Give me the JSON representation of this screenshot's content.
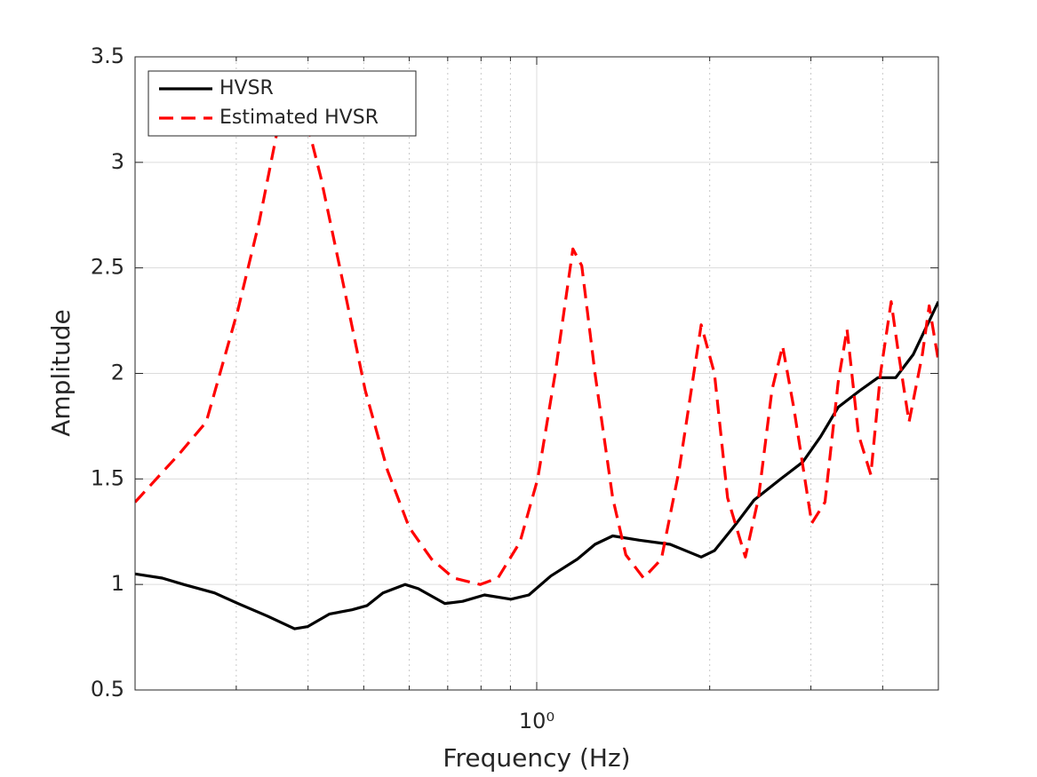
{
  "chart_data": {
    "type": "line",
    "xlabel": "Frequency (Hz)",
    "ylabel": "Amplitude",
    "xscale": "log",
    "xlim": [
      0.2,
      5
    ],
    "ylim": [
      0.5,
      3.5
    ],
    "xticks": [
      {
        "value": 1,
        "label": "10⁰"
      }
    ],
    "xminorticks": [
      0.3,
      0.4,
      0.5,
      0.6,
      0.7,
      0.8,
      0.9,
      2,
      3,
      4
    ],
    "yticks": [
      0.5,
      1,
      1.5,
      2,
      2.5,
      3,
      3.5
    ],
    "grid": true,
    "legend": "upper-left",
    "series": [
      {
        "name": "HVSR",
        "color": "#000000",
        "dash": "solid",
        "x": [
          0.2,
          0.223,
          0.243,
          0.275,
          0.302,
          0.34,
          0.379,
          0.399,
          0.436,
          0.477,
          0.507,
          0.54,
          0.59,
          0.622,
          0.692,
          0.743,
          0.811,
          0.902,
          0.969,
          1.058,
          1.177,
          1.263,
          1.356,
          1.508,
          1.707,
          1.933,
          2.038,
          2.227,
          2.389,
          2.659,
          2.904,
          3.118,
          3.347,
          3.656,
          3.925,
          4.214,
          4.523,
          5
        ],
        "values": [
          1.05,
          1.03,
          1.0,
          0.96,
          0.91,
          0.85,
          0.79,
          0.8,
          0.86,
          0.88,
          0.9,
          0.96,
          1.0,
          0.98,
          0.91,
          0.92,
          0.95,
          0.93,
          0.95,
          1.04,
          1.12,
          1.19,
          1.23,
          1.21,
          1.19,
          1.13,
          1.16,
          1.29,
          1.4,
          1.5,
          1.58,
          1.7,
          1.84,
          1.92,
          1.98,
          1.98,
          2.09,
          2.34
        ]
      },
      {
        "name": "Estimated HVSR",
        "color": "#ff0000",
        "dash": "dashed",
        "x": [
          0.2,
          0.239,
          0.266,
          0.302,
          0.329,
          0.353,
          0.372,
          0.399,
          0.421,
          0.461,
          0.503,
          0.55,
          0.6,
          0.656,
          0.717,
          0.797,
          0.856,
          0.935,
          1.004,
          1.077,
          1.156,
          1.198,
          1.263,
          1.356,
          1.429,
          1.535,
          1.648,
          1.769,
          1.933,
          2.038,
          2.149,
          2.307,
          2.432,
          2.566,
          2.678,
          2.804,
          3.01,
          3.174,
          3.347,
          3.467,
          3.631,
          3.815,
          3.966,
          4.139,
          4.243,
          4.446,
          4.69,
          4.82,
          5
        ],
        "values": [
          1.39,
          1.62,
          1.77,
          2.3,
          2.72,
          3.14,
          3.22,
          3.18,
          2.93,
          2.42,
          1.92,
          1.54,
          1.27,
          1.12,
          1.03,
          1.0,
          1.03,
          1.2,
          1.5,
          2.0,
          2.59,
          2.51,
          2.0,
          1.41,
          1.14,
          1.03,
          1.12,
          1.54,
          2.23,
          2.0,
          1.41,
          1.13,
          1.41,
          1.92,
          2.13,
          1.83,
          1.29,
          1.39,
          1.96,
          2.21,
          1.71,
          1.52,
          2.0,
          2.34,
          2.13,
          1.77,
          2.09,
          2.32,
          2.06
        ]
      }
    ]
  }
}
